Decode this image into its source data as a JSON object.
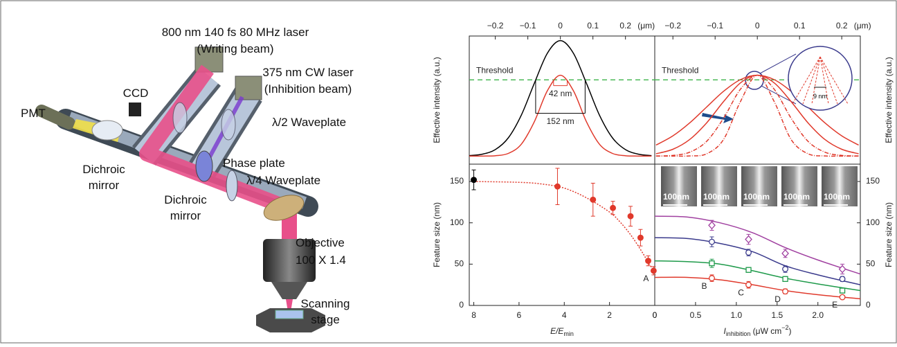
{
  "diagram": {
    "labels": [
      "800 nm 140 fs 80 MHz laser",
      "(Writing beam)",
      "375 nm CW laser",
      "(Inhibition beam)",
      "CCD",
      "PMT",
      "λ/2 Waveplate",
      "Phase plate",
      "λ/4 Waveplate",
      "Dichroic",
      "mirror",
      "Dichroic",
      "mirror",
      "Objective",
      "100 X 1.4",
      "Scanning",
      "stage"
    ]
  },
  "chart_data": [
    {
      "type": "line",
      "x_axis": "top",
      "y_axis": "left",
      "y_label": "Effective intensity (a.u.)",
      "x_unit": "(μm)",
      "xlim": [
        -0.28,
        0.29
      ],
      "xticks": [
        {
          "value": -0.2,
          "label": "−0.2"
        },
        {
          "value": -0.1,
          "label": "−0.1"
        },
        0,
        0.1,
        0.2
      ],
      "ylim": [
        -0.07,
        1.04
      ],
      "threshold": 0.66,
      "threshold_label": "Threshold",
      "threshold_color": "#3cb44a",
      "x": [
        -0.28,
        -0.24,
        -0.2,
        -0.16,
        -0.12,
        -0.08,
        -0.04,
        0,
        0.04,
        0.08,
        0.12,
        0.16,
        0.2,
        0.24,
        0.28
      ],
      "series": [
        {
          "color": "#000000",
          "values": [
            0.004,
            0.016,
            0.056,
            0.158,
            0.355,
            0.631,
            0.891,
            1,
            0.891,
            0.631,
            0.355,
            0.158,
            0.056,
            0.016,
            0.004
          ]
        },
        {
          "color": "#e0392b",
          "values": [
            0,
            0,
            0.003,
            0.023,
            0.103,
            0.298,
            0.566,
            0.7,
            0.566,
            0.298,
            0.103,
            0.023,
            0.003,
            0,
            0
          ]
        }
      ],
      "dims": [
        {
          "text": "42 nm",
          "color": "#e0392b",
          "span": [
            -0.021,
            0.021
          ],
          "level": 0.61
        },
        {
          "text": "152 nm",
          "color": "#000000",
          "span": [
            -0.076,
            0.076
          ],
          "level": 0.37
        }
      ]
    },
    {
      "type": "line",
      "x_axis": "top",
      "y_axis": "right",
      "y_label": "Effective intensity (a.u.)",
      "x_unit": "(μm)",
      "xlim": [
        -0.243,
        0.244
      ],
      "xticks": [
        {
          "value": -0.2,
          "label": "−0.2"
        },
        {
          "value": -0.1,
          "label": "−0.1"
        },
        0,
        0.1,
        0.2
      ],
      "ylim": [
        -0.07,
        1.04
      ],
      "threshold": 0.66,
      "threshold_label": "Threshold",
      "threshold_color": "#3cb44a",
      "inset_label": "9 nm",
      "x": [
        -0.24,
        -0.2,
        -0.16,
        -0.12,
        -0.08,
        -0.04,
        0,
        0.04,
        0.08,
        0.12,
        0.16,
        0.2,
        0.24
      ],
      "series": [
        {
          "color": "#e0392b",
          "dash": false,
          "values": [
            0.095,
            0.175,
            0.288,
            0.425,
            0.561,
            0.662,
            0.7,
            0.662,
            0.561,
            0.425,
            0.288,
            0.175,
            0.095
          ]
        },
        {
          "color": "#e0392b",
          "dash": false,
          "values": [
            0.02,
            0.059,
            0.144,
            0.288,
            0.472,
            0.634,
            0.7,
            0.634,
            0.472,
            0.288,
            0.144,
            0.059,
            0.02
          ]
        },
        {
          "color": "#e0392b",
          "dash": true,
          "values": [
            0.001,
            0.006,
            0.034,
            0.128,
            0.328,
            0.579,
            0.7,
            0.579,
            0.328,
            0.128,
            0.034,
            0.006,
            0.001
          ]
        },
        {
          "color": "#e0392b",
          "dash": true,
          "values": [
            0,
            0,
            0.001,
            0.02,
            0.144,
            0.472,
            0.7,
            0.472,
            0.144,
            0.02,
            0.001,
            0,
            0
          ]
        }
      ]
    },
    {
      "type": "scatter",
      "x_axis": "bottom",
      "y_axis": "left",
      "y_label": "Feature size (nm)",
      "x_label": {
        "main": "E/E",
        "sub": "min"
      },
      "xlim": [
        8.2,
        0
      ],
      "xticks": [
        8,
        6,
        4,
        2,
        0
      ],
      "ylim": [
        0,
        171
      ],
      "yticks": [
        0,
        50,
        100,
        150
      ],
      "series": [
        {
          "style": "line",
          "color": "#e0392b",
          "dash": true,
          "x": [
            8,
            6,
            5,
            4,
            3,
            2,
            1.5,
            1,
            0.5,
            0.25,
            0
          ],
          "values": [
            150,
            149,
            147,
            142,
            130,
            113,
            100,
            83,
            62,
            50,
            42
          ]
        },
        {
          "style": "points",
          "marker": "circle",
          "filled": true,
          "color": "#e0392b",
          "point_colors": [
            "#000000",
            "#e0392b",
            "#e0392b",
            "#e0392b",
            "#e0392b",
            "#e0392b",
            "#e0392b",
            "#e0392b"
          ],
          "x": [
            8,
            4.3,
            2.73,
            1.85,
            1.07,
            0.63,
            0.29,
            0.05
          ],
          "values": [
            152,
            144,
            128,
            118,
            108,
            82,
            54,
            42
          ],
          "errors": [
            12,
            22,
            20,
            8,
            12,
            10,
            6,
            5
          ],
          "labels": [
            null,
            null,
            null,
            null,
            null,
            null,
            null,
            "A"
          ]
        }
      ]
    },
    {
      "type": "scatter",
      "x_axis": "bottom",
      "y_axis": "right",
      "y_label": "Feature size (nm)",
      "x_label": {
        "main": "I",
        "sub": "inhibition",
        "unit": " (μW cm",
        "sup": "−2",
        "close": ")"
      },
      "xlim": [
        0,
        2.52
      ],
      "xticks": [
        0,
        0.5,
        {
          "value": 1,
          "label": "1.0"
        },
        1.5,
        {
          "value": 2,
          "label": "2.0"
        }
      ],
      "ylim": [
        0,
        171
      ],
      "yticks": [
        0,
        50,
        100,
        150
      ],
      "insets": [
        "100nm",
        "100nm",
        "100nm",
        "100nm",
        "100nm"
      ],
      "series": [
        {
          "style": "line",
          "color": "#a040a0",
          "x": [
            0,
            0.4,
            0.8,
            1.2,
            1.6,
            2.0,
            2.52
          ],
          "values": [
            108,
            107,
            100,
            88,
            70,
            55,
            38
          ]
        },
        {
          "style": "line",
          "color": "#3a3a8c",
          "x": [
            0,
            0.4,
            0.8,
            1.2,
            1.6,
            2.0,
            2.52
          ],
          "values": [
            82,
            81,
            75,
            65,
            48,
            37,
            25
          ]
        },
        {
          "style": "line",
          "color": "#1e9a4a",
          "x": [
            0,
            0.4,
            0.8,
            1.2,
            1.6,
            2.0,
            2.52
          ],
          "values": [
            54,
            53,
            50,
            42,
            33,
            26,
            18
          ]
        },
        {
          "style": "line",
          "color": "#e0392b",
          "x": [
            0,
            0.4,
            0.8,
            1.2,
            1.6,
            2.0,
            2.52
          ],
          "values": [
            34,
            34,
            31,
            25,
            18,
            13,
            8
          ]
        },
        {
          "style": "points",
          "marker": "diamond",
          "filled": false,
          "color": "#a040a0",
          "x": [
            0.7,
            1.15,
            1.6,
            2.3
          ],
          "values": [
            97,
            80,
            63,
            44
          ],
          "errors": [
            6,
            6,
            5,
            6
          ]
        },
        {
          "style": "points",
          "marker": "circle",
          "filled": false,
          "color": "#3a3a8c",
          "x": [
            0.7,
            1.15,
            1.6,
            2.3
          ],
          "values": [
            77,
            64,
            44,
            32
          ],
          "errors": [
            6,
            4,
            4,
            3
          ]
        },
        {
          "style": "points",
          "marker": "square",
          "filled": false,
          "color": "#1e9a4a",
          "x": [
            0.7,
            1.15,
            1.6,
            2.3
          ],
          "values": [
            51,
            43,
            32,
            18
          ],
          "errors": [
            5,
            3,
            3,
            3
          ]
        },
        {
          "style": "points",
          "marker": "circle",
          "filled": false,
          "color": "#e0392b",
          "x": [
            0.7,
            1.15,
            1.6,
            2.3
          ],
          "values": [
            33,
            25,
            17,
            10
          ],
          "errors": [
            4,
            4,
            3,
            2
          ],
          "labels": [
            "B",
            "C",
            "D",
            "E"
          ]
        }
      ]
    }
  ]
}
